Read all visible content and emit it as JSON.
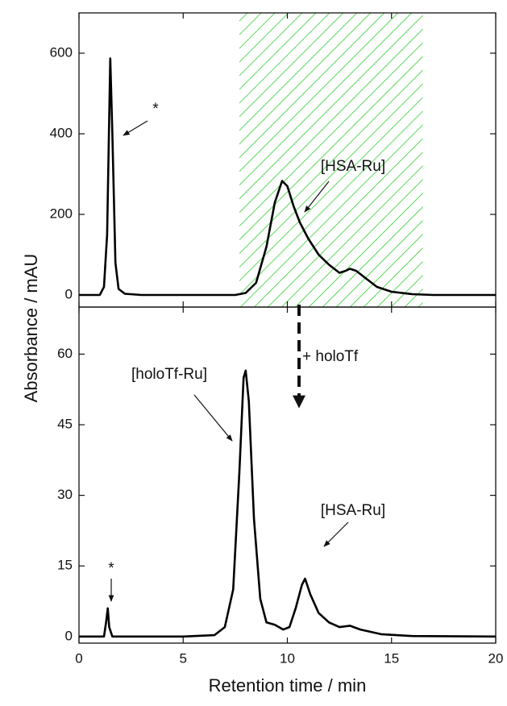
{
  "chart_data": [
    {
      "type": "line",
      "ylabel": "Absorbance / mAU",
      "color": "#000000",
      "x": [
        0,
        1.0,
        1.2,
        1.35,
        1.5,
        1.6,
        1.75,
        1.9,
        2.2,
        3,
        7.5,
        8.0,
        8.5,
        9.0,
        9.4,
        9.75,
        10.0,
        10.3,
        10.6,
        11,
        11.5,
        12,
        12.5,
        12.8,
        13.0,
        13.3,
        13.8,
        14.3,
        15,
        16,
        17,
        20
      ],
      "values": [
        0,
        0,
        20,
        150,
        587,
        400,
        80,
        15,
        3,
        0,
        0,
        5,
        30,
        120,
        230,
        283,
        270,
        220,
        180,
        140,
        100,
        75,
        55,
        60,
        65,
        60,
        40,
        20,
        8,
        2,
        0,
        0
      ],
      "xlim": [
        0,
        20
      ],
      "ylim": [
        -30,
        700
      ],
      "yticks": [
        0,
        200,
        400,
        600
      ],
      "shaded_region": [
        7.7,
        16.5
      ],
      "shaded_color": "#33cc33",
      "annotations": [
        "*",
        "[HSA-Ru]",
        "+ holoTf"
      ]
    },
    {
      "type": "line",
      "xlabel": "Retention time / min",
      "color": "#000000",
      "x": [
        0,
        1.2,
        1.3,
        1.38,
        1.45,
        1.6,
        5,
        6.5,
        7,
        7.4,
        7.7,
        7.9,
        8.0,
        8.15,
        8.4,
        8.7,
        9.0,
        9.4,
        9.8,
        10.1,
        10.4,
        10.7,
        10.85,
        11.1,
        11.5,
        12,
        12.5,
        13,
        13.5,
        14.5,
        16,
        20
      ],
      "values": [
        0,
        0,
        3,
        6,
        2,
        0,
        0,
        0.3,
        2,
        10,
        35,
        55,
        56.5,
        50,
        25,
        8,
        3,
        2.5,
        1.5,
        2,
        6,
        11,
        12.3,
        9,
        5,
        3,
        2,
        2.3,
        1.5,
        0.5,
        0.1,
        0
      ],
      "xlim": [
        0,
        20
      ],
      "ylim": [
        -1.4,
        70
      ],
      "xticks": [
        0,
        5,
        10,
        15,
        20
      ],
      "yticks": [
        0,
        15,
        30,
        45,
        60
      ],
      "annotations": [
        "[holoTf-Ru]",
        "*",
        "[HSA-Ru]"
      ]
    }
  ]
}
